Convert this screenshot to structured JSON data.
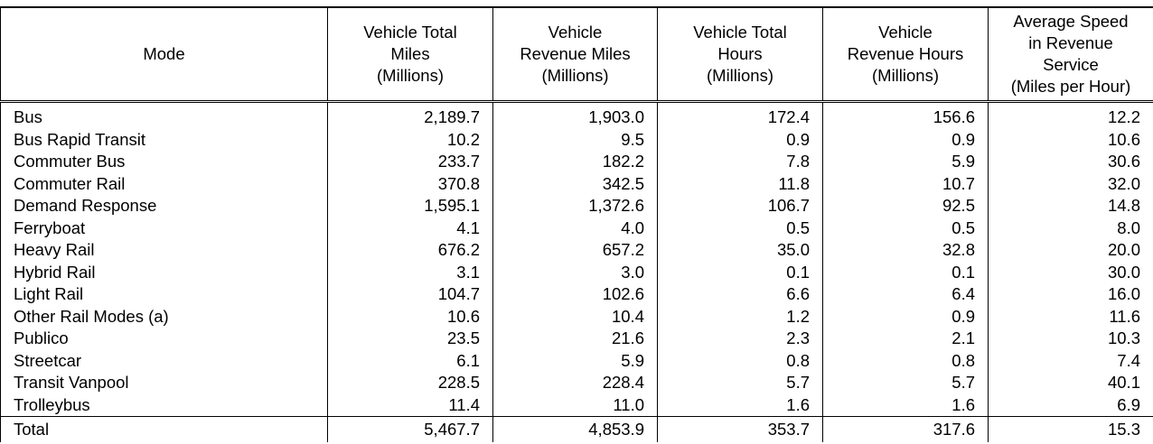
{
  "table": {
    "header": [
      [
        "Mode"
      ],
      [
        "Vehicle Total",
        "Miles",
        "(Millions)"
      ],
      [
        "Vehicle",
        "Revenue Miles",
        "(Millions)"
      ],
      [
        "Vehicle Total",
        "Hours",
        "(Millions)"
      ],
      [
        "Vehicle",
        "Revenue Hours",
        "(Millions)"
      ],
      [
        "Average Speed",
        "in Revenue",
        "Service",
        "(Miles per Hour)"
      ]
    ],
    "rows": [
      [
        "Bus",
        "2,189.7",
        "1,903.0",
        "172.4",
        "156.6",
        "12.2"
      ],
      [
        "Bus Rapid Transit",
        "10.2",
        "9.5",
        "0.9",
        "0.9",
        "10.6"
      ],
      [
        "Commuter Bus",
        "233.7",
        "182.2",
        "7.8",
        "5.9",
        "30.6"
      ],
      [
        "Commuter Rail",
        "370.8",
        "342.5",
        "11.8",
        "10.7",
        "32.0"
      ],
      [
        "Demand Response",
        "1,595.1",
        "1,372.6",
        "106.7",
        "92.5",
        "14.8"
      ],
      [
        "Ferryboat",
        "4.1",
        "4.0",
        "0.5",
        "0.5",
        "8.0"
      ],
      [
        "Heavy Rail",
        "676.2",
        "657.2",
        "35.0",
        "32.8",
        "20.0"
      ],
      [
        "Hybrid Rail",
        "3.1",
        "3.0",
        "0.1",
        "0.1",
        "30.0"
      ],
      [
        "Light Rail",
        "104.7",
        "102.6",
        "6.6",
        "6.4",
        "16.0"
      ],
      [
        "Other Rail Modes (a)",
        "10.6",
        "10.4",
        "1.2",
        "0.9",
        "11.6"
      ],
      [
        "Publico",
        "23.5",
        "21.6",
        "2.3",
        "2.1",
        "10.3"
      ],
      [
        "Streetcar",
        "6.1",
        "5.9",
        "0.8",
        "0.8",
        "7.4"
      ],
      [
        "Transit Vanpool",
        "228.5",
        "228.4",
        "5.7",
        "5.7",
        "40.1"
      ],
      [
        "Trolleybus",
        "11.4",
        "11.0",
        "1.6",
        "1.6",
        "6.9"
      ]
    ],
    "total": [
      "Total",
      "5,467.7",
      "4,853.9",
      "353.7",
      "317.6",
      "15.3"
    ]
  }
}
